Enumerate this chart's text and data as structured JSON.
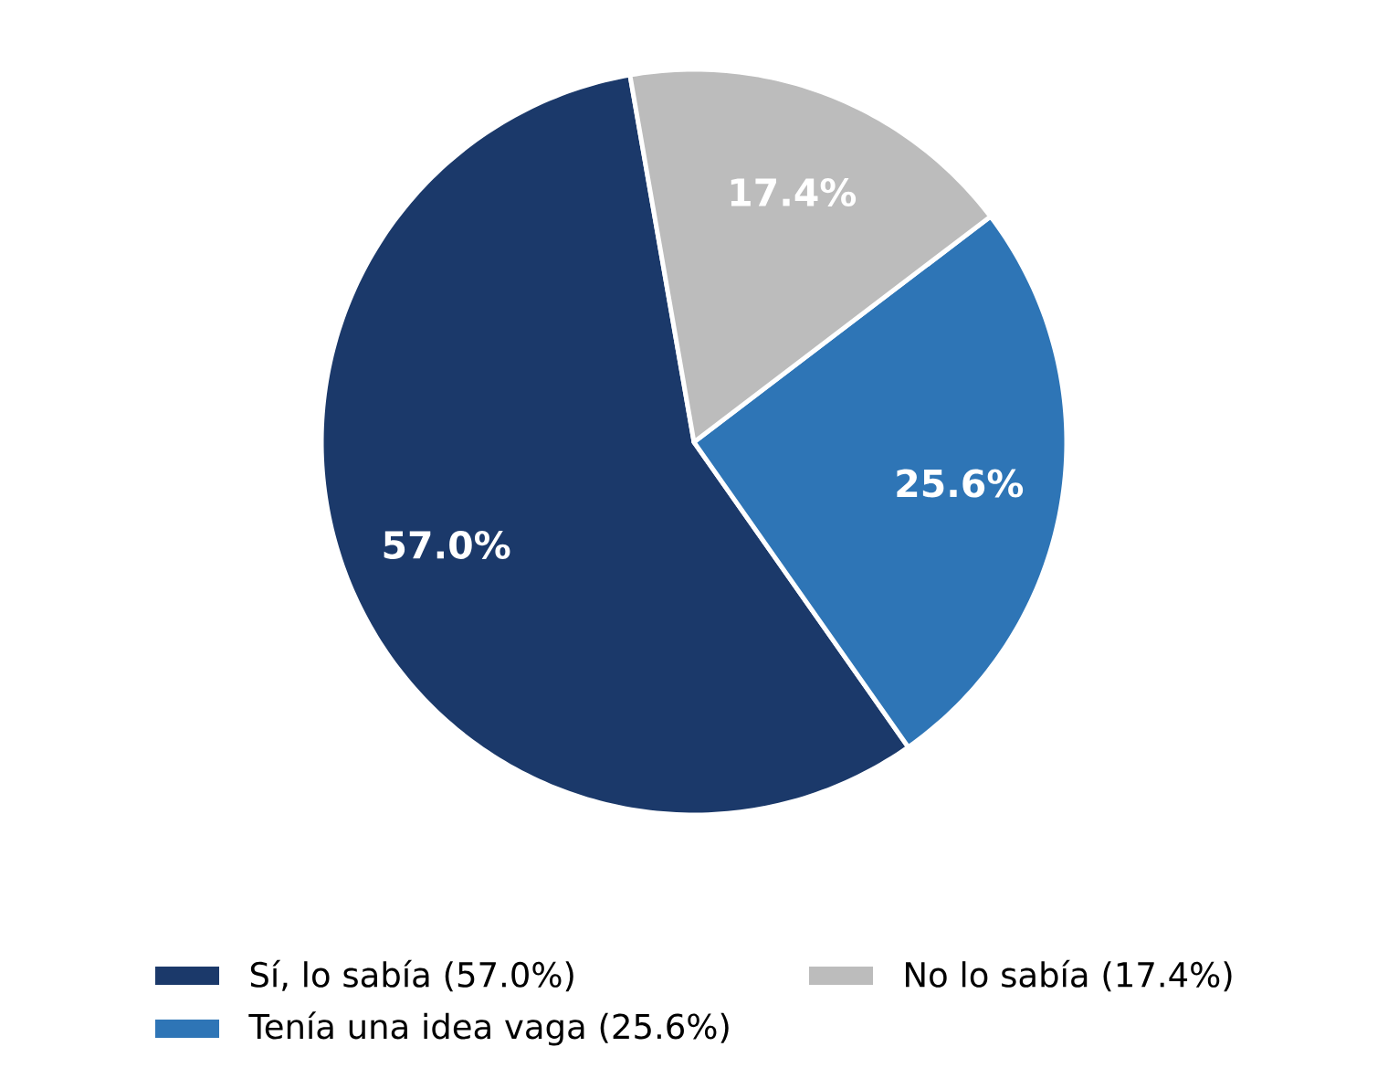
{
  "chart_data": {
    "type": "pie",
    "categories": [
      "Sí, lo sabía (57.0%)",
      "Tenía una idea vaga (25.6%)",
      "No lo sabía (17.4%)"
    ],
    "values": [
      57.0,
      25.6,
      17.4
    ],
    "colors": [
      "#1b396a",
      "#2e75b6",
      "#bcbcbc"
    ],
    "value_labels": [
      "57.0%",
      "25.6%",
      "17.4%"
    ],
    "legend": "bottom"
  }
}
